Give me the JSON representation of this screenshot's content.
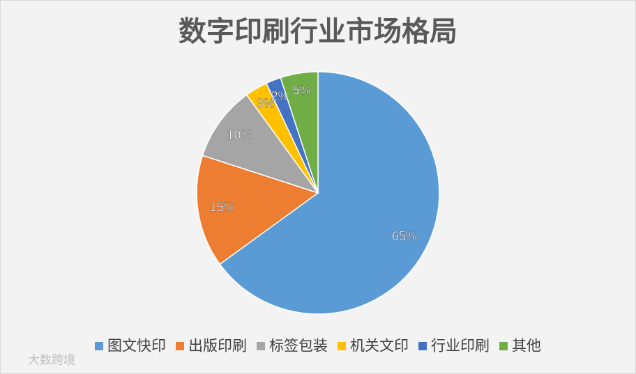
{
  "chart_data": {
    "type": "pie",
    "title": "数字印刷行业市场格局",
    "categories": [
      "图文快印",
      "出版印刷",
      "标签包装",
      "机关文印",
      "行业印刷",
      "其他"
    ],
    "values": [
      65,
      15,
      10,
      3,
      2,
      5
    ],
    "value_labels": [
      "65%",
      "15%",
      "10%",
      "3%",
      "2%",
      "5%"
    ],
    "colors": [
      "#5b9bd5",
      "#ed7d31",
      "#a5a5a5",
      "#ffc000",
      "#4472c4",
      "#70ad47"
    ],
    "legend": "bottom",
    "watermark": "大数跨境"
  }
}
